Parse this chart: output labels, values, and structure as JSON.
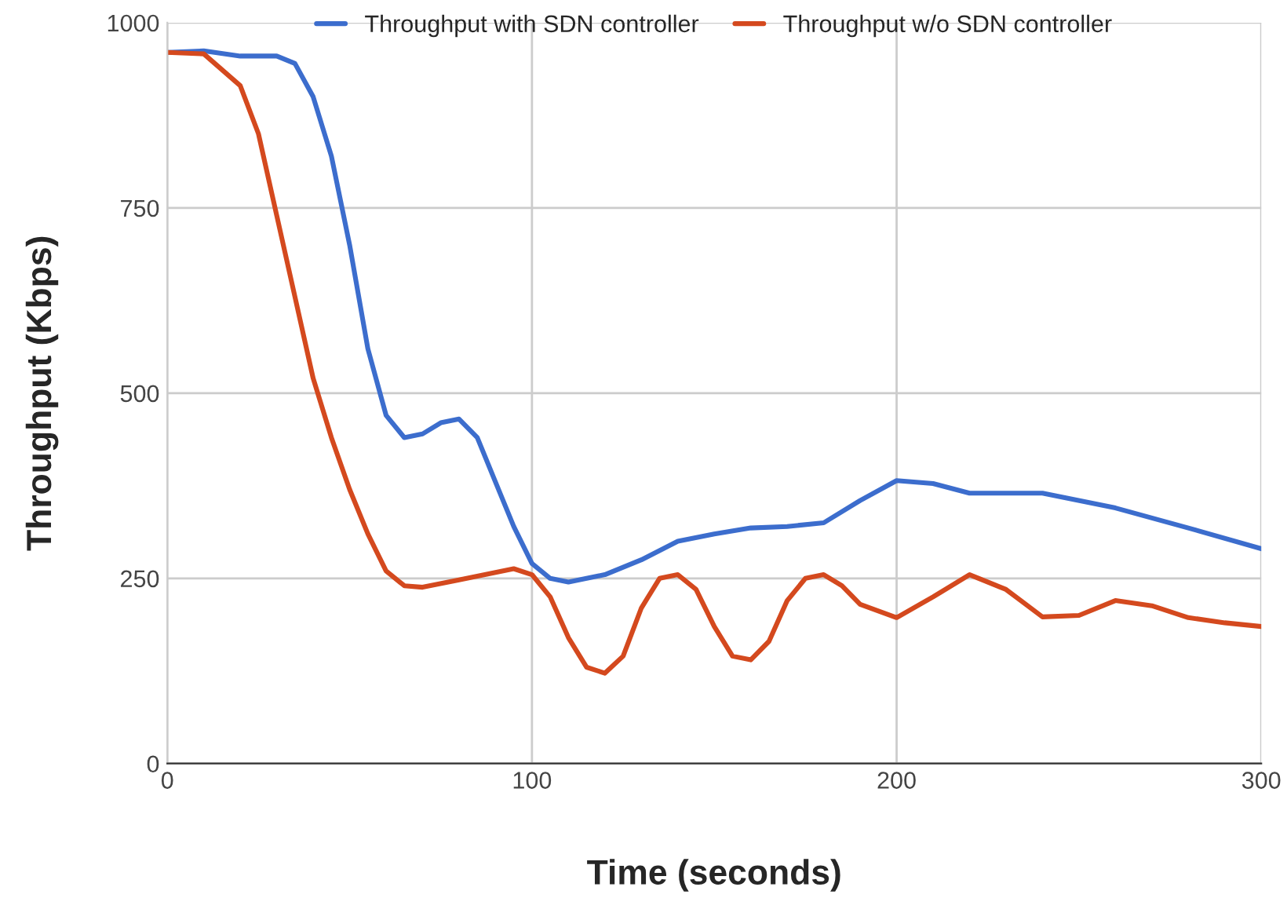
{
  "chart_data": {
    "type": "line",
    "xlabel": "Time (seconds)",
    "ylabel": "Throughput (Kbps)",
    "xlim": [
      0,
      300
    ],
    "xticks": [
      0,
      100,
      200,
      300
    ],
    "ylim": [
      0,
      1000
    ],
    "yticks": [
      0,
      250,
      500,
      750,
      1000
    ],
    "grid": true,
    "legend": "top",
    "marker": "none",
    "line_style": "solid",
    "series": [
      {
        "name": "Throughput with SDN controller",
        "color": "#3c6dcd",
        "x": [
          0,
          10,
          20,
          30,
          35,
          40,
          45,
          50,
          55,
          60,
          65,
          70,
          75,
          80,
          85,
          90,
          95,
          100,
          105,
          110,
          120,
          130,
          140,
          150,
          160,
          170,
          180,
          190,
          200,
          210,
          220,
          240,
          260,
          280,
          300
        ],
        "values": [
          960,
          962,
          955,
          955,
          945,
          900,
          820,
          700,
          560,
          470,
          440,
          445,
          460,
          465,
          440,
          380,
          320,
          270,
          250,
          245,
          255,
          275,
          300,
          310,
          318,
          320,
          325,
          355,
          382,
          378,
          365,
          365,
          345,
          318,
          290
        ]
      },
      {
        "name": "Throughput w/o SDN controller",
        "color": "#d4491e",
        "x": [
          0,
          10,
          20,
          25,
          30,
          35,
          40,
          45,
          50,
          55,
          60,
          65,
          70,
          80,
          90,
          95,
          100,
          105,
          110,
          115,
          120,
          125,
          130,
          135,
          140,
          145,
          150,
          155,
          160,
          165,
          170,
          175,
          180,
          185,
          190,
          200,
          210,
          220,
          230,
          240,
          250,
          260,
          270,
          280,
          290,
          300
        ],
        "values": [
          960,
          958,
          915,
          850,
          740,
          630,
          520,
          440,
          370,
          310,
          260,
          240,
          238,
          248,
          258,
          263,
          255,
          225,
          170,
          130,
          122,
          145,
          210,
          250,
          255,
          235,
          185,
          145,
          140,
          165,
          220,
          250,
          255,
          240,
          215,
          197,
          225,
          255,
          235,
          198,
          200,
          220,
          213,
          197,
          190,
          185
        ]
      }
    ]
  }
}
